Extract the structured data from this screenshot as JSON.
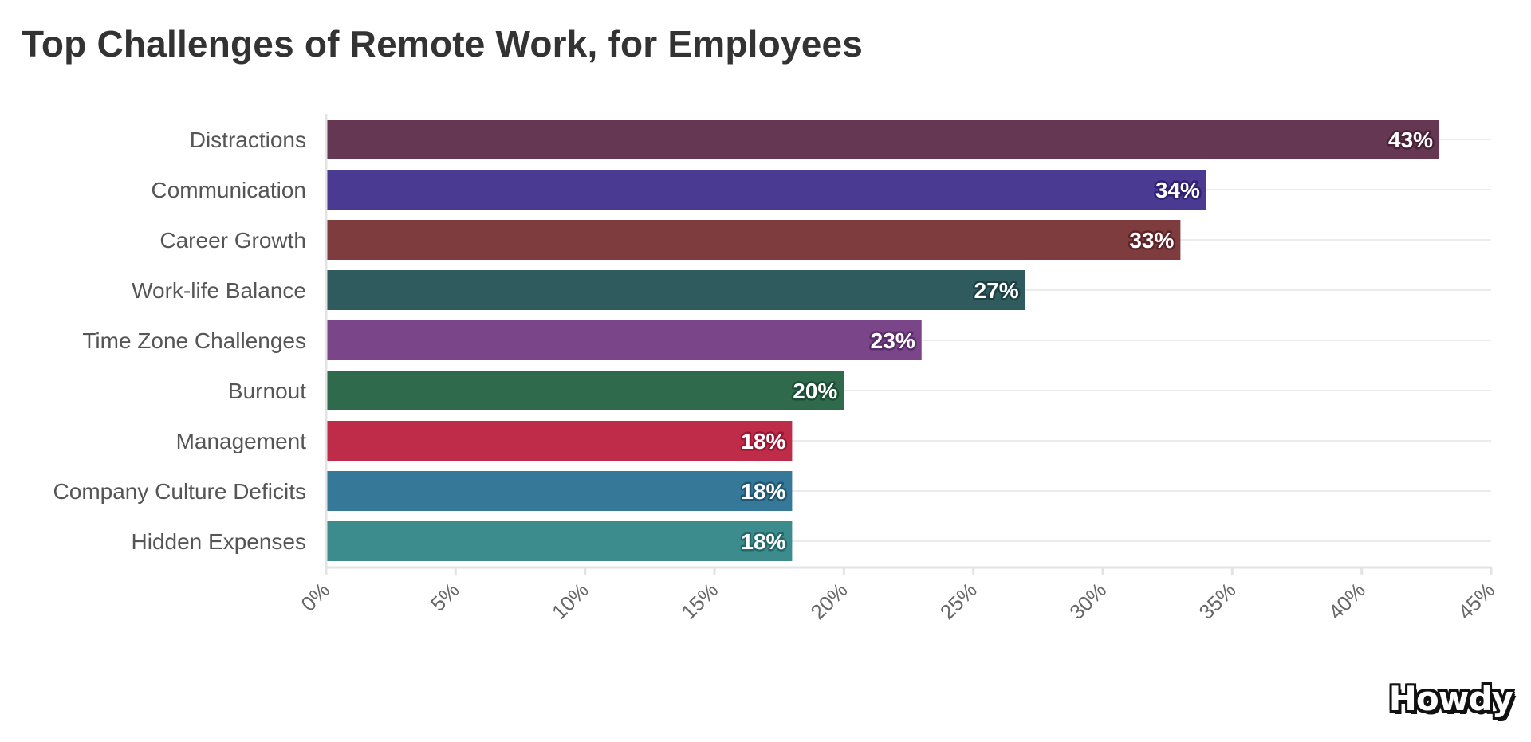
{
  "chart_data": {
    "type": "bar",
    "orientation": "horizontal",
    "title": "Top Challenges of Remote Work, for Employees",
    "categories": [
      "Distractions",
      "Communication",
      "Career Growth",
      "Work-life Balance",
      "Time Zone Challenges",
      "Burnout",
      "Management",
      "Company Culture Deficits",
      "Hidden Expenses"
    ],
    "values": [
      43,
      34,
      33,
      27,
      23,
      20,
      18,
      18,
      18
    ],
    "value_labels": [
      "43%",
      "34%",
      "33%",
      "27%",
      "23%",
      "20%",
      "18%",
      "18%",
      "18%"
    ],
    "colors": [
      "#653753",
      "#4a3a91",
      "#7e3c3e",
      "#2f5b5e",
      "#7a4589",
      "#2f6a4c",
      "#be2c4a",
      "#357897",
      "#3c8c8e"
    ],
    "label_outline_colors": [
      "#4a2238",
      "#2e2170",
      "#5e2427",
      "#1d4043",
      "#5a2c6a",
      "#1b4d34",
      "#9a1632",
      "#1f5873",
      "#23696b"
    ],
    "xlim": [
      0,
      45
    ],
    "xticks": [
      0,
      5,
      10,
      15,
      20,
      25,
      30,
      35,
      40,
      45
    ],
    "xtick_labels": [
      "0%",
      "5%",
      "10%",
      "15%",
      "20%",
      "25%",
      "30%",
      "35%",
      "40%",
      "45%"
    ],
    "xlabel": "",
    "ylabel": "",
    "grid": true
  },
  "branding": {
    "logo_text": "Howdy"
  }
}
